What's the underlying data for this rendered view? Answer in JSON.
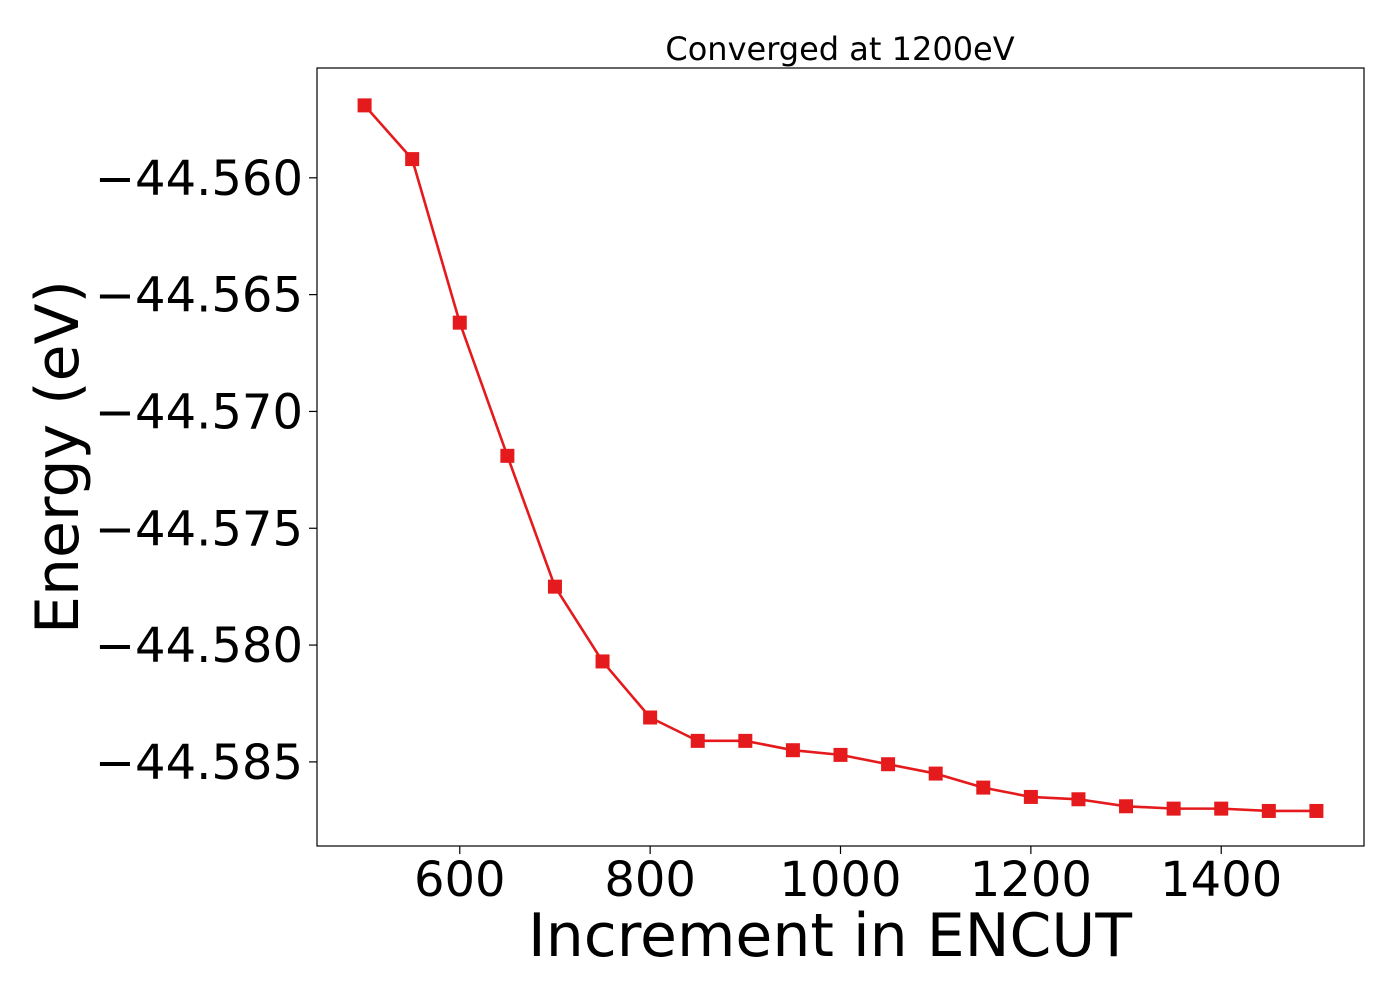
{
  "chart_data": {
    "type": "line",
    "title": "Converged at 1200eV",
    "xlabel": "Increment in ENCUT",
    "ylabel": "Energy (eV)",
    "xlim": [
      450,
      1550
    ],
    "ylim": [
      -44.5886,
      -44.5553
    ],
    "x_ticks": [
      600,
      800,
      1000,
      1200,
      1400
    ],
    "x_tick_labels": [
      "600",
      "800",
      "1000",
      "1200",
      "1400"
    ],
    "y_ticks": [
      -44.56,
      -44.565,
      -44.57,
      -44.575,
      -44.58,
      -44.585
    ],
    "y_tick_labels": [
      "−44.560",
      "−44.565",
      "−44.570",
      "−44.575",
      "−44.580",
      "−44.585"
    ],
    "grid": false,
    "colors": {
      "series": "#e41a1c"
    },
    "series": [
      {
        "marker": "square",
        "x": [
          500,
          550,
          600,
          650,
          700,
          750,
          800,
          850,
          900,
          950,
          1000,
          1050,
          1100,
          1150,
          1200,
          1250,
          1300,
          1350,
          1400,
          1450,
          1500
        ],
        "y": [
          -44.5569,
          -44.5592,
          -44.5662,
          -44.5719,
          -44.5775,
          -44.5807,
          -44.5831,
          -44.5841,
          -44.5841,
          -44.5845,
          -44.5847,
          -44.5851,
          -44.5855,
          -44.5861,
          -44.5865,
          -44.5866,
          -44.5869,
          -44.587,
          -44.587,
          -44.5871,
          -44.5871
        ]
      }
    ]
  }
}
